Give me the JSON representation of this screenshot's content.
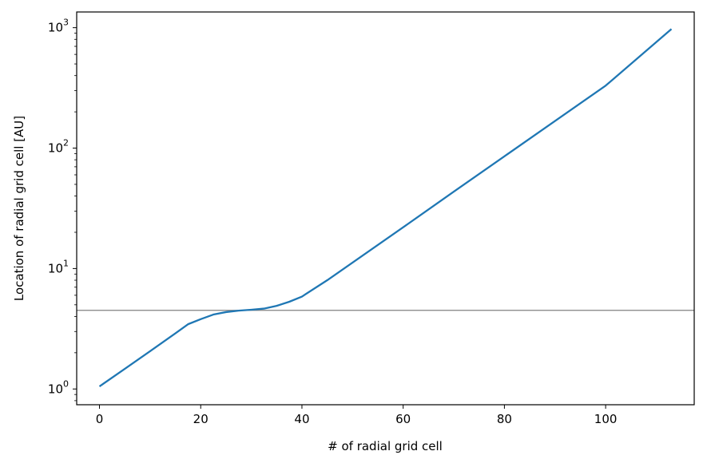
{
  "chart_data": {
    "type": "line",
    "title": "",
    "xlabel": "# of radial grid cell",
    "ylabel": "Location of radial grid cell [AU]",
    "xlim": [
      -4.5,
      117.5
    ],
    "ylim": [
      0.74,
      1350
    ],
    "yscale": "log",
    "grid": false,
    "legend": "none",
    "x_ticks": [
      {
        "value": 0,
        "label": "0"
      },
      {
        "value": 20,
        "label": "20"
      },
      {
        "value": 40,
        "label": "40"
      },
      {
        "value": 60,
        "label": "60"
      },
      {
        "value": 80,
        "label": "80"
      },
      {
        "value": 100,
        "label": "100"
      }
    ],
    "y_ticks": [
      {
        "value": 1,
        "base": "10",
        "exp": "0"
      },
      {
        "value": 10,
        "base": "10",
        "exp": "1"
      },
      {
        "value": 100,
        "base": "10",
        "exp": "2"
      },
      {
        "value": 1000,
        "base": "10",
        "exp": "3"
      }
    ],
    "hline": {
      "y": 4.5,
      "color": "#808080"
    },
    "series": [
      {
        "color": "#1f77b4",
        "x": [
          0,
          5,
          10,
          15,
          17.5,
          20,
          22.5,
          25,
          27.5,
          30,
          32.5,
          35,
          37.5,
          40,
          45,
          50,
          60,
          70,
          80,
          90,
          100,
          113
        ],
        "y": [
          1.05,
          1.47,
          2.06,
          2.9,
          3.45,
          3.8,
          4.15,
          4.35,
          4.47,
          4.55,
          4.65,
          4.9,
          5.3,
          5.85,
          8.0,
          11.2,
          22.0,
          43.5,
          85.5,
          168.0,
          330.0,
          975.0
        ]
      }
    ]
  }
}
